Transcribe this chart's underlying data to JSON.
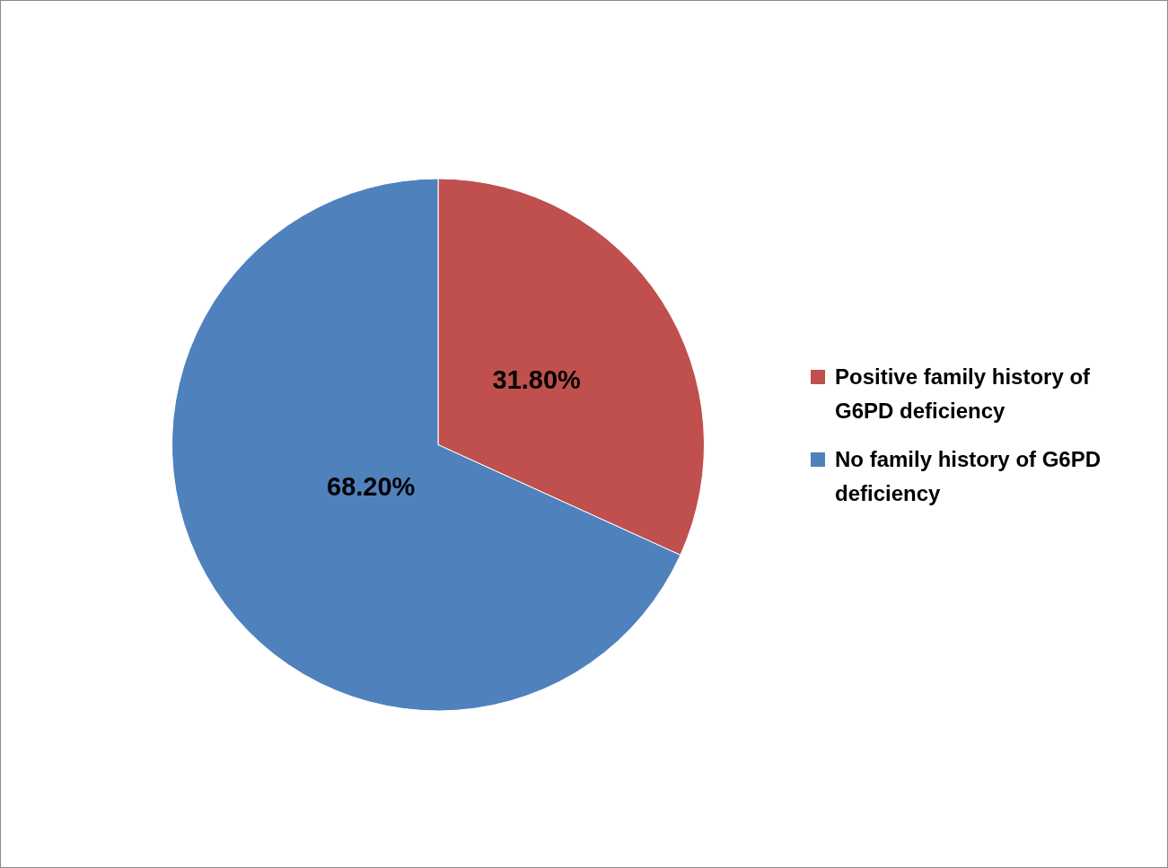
{
  "chart_data": {
    "type": "pie",
    "categories": [
      "Positive family history of G6PD deficiency",
      "No family history of G6PD deficiency"
    ],
    "values": [
      31.8,
      68.2
    ],
    "colors": [
      "#c0504d",
      "#4f81bd"
    ],
    "value_labels": [
      "31.80%",
      "68.20%"
    ],
    "legend": "right"
  }
}
